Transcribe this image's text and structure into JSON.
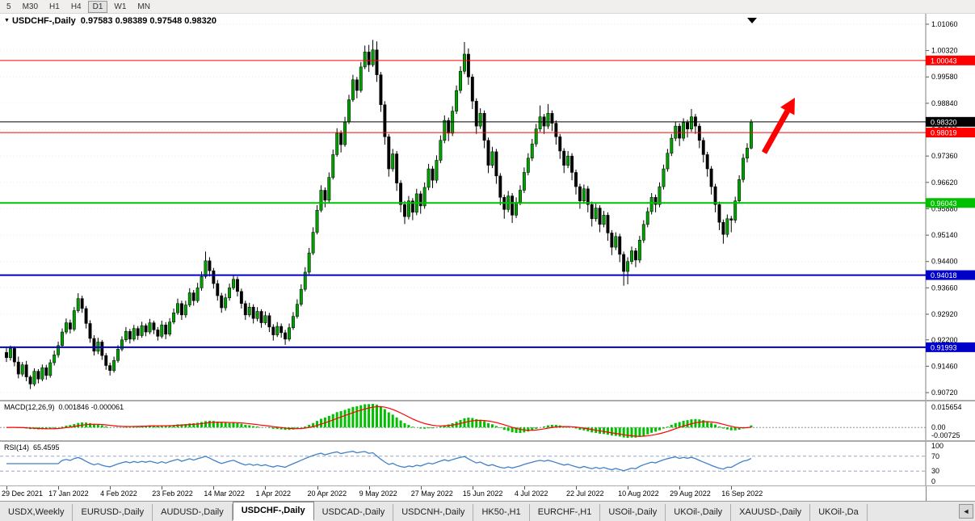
{
  "toolbar": {
    "timeframes": [
      "5",
      "M30",
      "H1",
      "H4",
      "D1",
      "W1",
      "MN"
    ],
    "active": "D1"
  },
  "chart_data": {
    "type": "candlestick",
    "symbol": "USDCHF-",
    "period": "Daily",
    "title": "USDCHF-,Daily",
    "ohlc_text": "0.97583 0.98389 0.97548 0.98320",
    "current": {
      "open": 0.97583,
      "high": 0.98389,
      "low": 0.97548,
      "close": 0.9832
    },
    "y_min": 0.9072,
    "y_max": 1.0106,
    "price_axis_labels": [
      "1.01060",
      "1.00320",
      "0.99580",
      "0.98840",
      "0.98100",
      "0.97360",
      "0.96620",
      "0.95880",
      "0.95140",
      "0.94400",
      "0.93660",
      "0.92920",
      "0.92200",
      "0.91460",
      "0.90720"
    ],
    "x_labels": [
      "29 Dec 2021",
      "17 Jan 2022",
      "4 Feb 2022",
      "23 Feb 2022",
      "14 Mar 2022",
      "1 Apr 2022",
      "20 Apr 2022",
      "9 May 2022",
      "27 May 2022",
      "15 Jun 2022",
      "4 Jul 2022",
      "22 Jul 2022",
      "10 Aug 2022",
      "29 Aug 2022",
      "16 Sep 2022"
    ],
    "bars_per_label": 13,
    "up_color": "#00A000",
    "down_color": "#000000",
    "hlines": [
      {
        "price": 1.00043,
        "label": "1.00043",
        "color": "#FF0000",
        "width": 1
      },
      {
        "price": 0.9832,
        "label": "0.98320",
        "color": "#000000",
        "width": 1
      },
      {
        "price": 0.98019,
        "label": "0.98019",
        "color": "#FF0000",
        "width": 1
      },
      {
        "price": 0.96043,
        "label": "0.96043",
        "color": "#00C000",
        "width": 2
      },
      {
        "price": 0.94018,
        "label": "0.94018",
        "color": "#0000C8",
        "width": 2
      },
      {
        "price": 0.91993,
        "label": "0.91993",
        "color": "#0000C8",
        "width": 2
      }
    ],
    "candles": [
      [
        0.9185,
        0.9197,
        0.9158,
        0.917
      ],
      [
        0.917,
        0.9204,
        0.9162,
        0.9196
      ],
      [
        0.9196,
        0.9202,
        0.9146,
        0.9158
      ],
      [
        0.9158,
        0.9173,
        0.9112,
        0.9124
      ],
      [
        0.9124,
        0.9158,
        0.9117,
        0.915
      ],
      [
        0.915,
        0.9161,
        0.9104,
        0.9116
      ],
      [
        0.9116,
        0.9121,
        0.9082,
        0.9096
      ],
      [
        0.9096,
        0.914,
        0.909,
        0.9132
      ],
      [
        0.9132,
        0.9138,
        0.9098,
        0.911
      ],
      [
        0.911,
        0.9151,
        0.9104,
        0.9142
      ],
      [
        0.9142,
        0.915,
        0.9108,
        0.912
      ],
      [
        0.912,
        0.9165,
        0.9114,
        0.9156
      ],
      [
        0.9156,
        0.919,
        0.9148,
        0.9178
      ],
      [
        0.9178,
        0.9215,
        0.917,
        0.9204
      ],
      [
        0.9204,
        0.9252,
        0.9198,
        0.9242
      ],
      [
        0.9242,
        0.928,
        0.9236,
        0.9268
      ],
      [
        0.9268,
        0.9277,
        0.9238,
        0.925
      ],
      [
        0.925,
        0.9312,
        0.9244,
        0.9302
      ],
      [
        0.9302,
        0.9351,
        0.9296,
        0.9336
      ],
      [
        0.9336,
        0.9344,
        0.9296,
        0.9308
      ],
      [
        0.9308,
        0.9315,
        0.9252,
        0.9266
      ],
      [
        0.9266,
        0.9275,
        0.9212,
        0.9224
      ],
      [
        0.9224,
        0.9233,
        0.9176,
        0.9188
      ],
      [
        0.9188,
        0.9226,
        0.918,
        0.9214
      ],
      [
        0.9214,
        0.922,
        0.9164,
        0.9176
      ],
      [
        0.9176,
        0.9183,
        0.9136,
        0.9148
      ],
      [
        0.9148,
        0.9156,
        0.912,
        0.9134
      ],
      [
        0.9134,
        0.9173,
        0.9128,
        0.9162
      ],
      [
        0.9162,
        0.9205,
        0.9156,
        0.9194
      ],
      [
        0.9194,
        0.923,
        0.9188,
        0.922
      ],
      [
        0.922,
        0.9256,
        0.9214,
        0.9244
      ],
      [
        0.9244,
        0.9251,
        0.921,
        0.9222
      ],
      [
        0.9222,
        0.9262,
        0.9216,
        0.9252
      ],
      [
        0.9252,
        0.9259,
        0.922,
        0.9232
      ],
      [
        0.9232,
        0.9271,
        0.9226,
        0.926
      ],
      [
        0.926,
        0.9266,
        0.923,
        0.9242
      ],
      [
        0.9242,
        0.9279,
        0.9236,
        0.9268
      ],
      [
        0.9268,
        0.9274,
        0.9236,
        0.9248
      ],
      [
        0.9248,
        0.9256,
        0.9218,
        0.923
      ],
      [
        0.923,
        0.9274,
        0.9224,
        0.9262
      ],
      [
        0.9262,
        0.927,
        0.9222,
        0.9236
      ],
      [
        0.9236,
        0.9281,
        0.923,
        0.927
      ],
      [
        0.927,
        0.9308,
        0.9264,
        0.9296
      ],
      [
        0.9296,
        0.9336,
        0.929,
        0.9322
      ],
      [
        0.9322,
        0.933,
        0.9276,
        0.929
      ],
      [
        0.929,
        0.933,
        0.9282,
        0.9318
      ],
      [
        0.9318,
        0.9365,
        0.9312,
        0.9352
      ],
      [
        0.9352,
        0.936,
        0.9316,
        0.933
      ],
      [
        0.933,
        0.938,
        0.9324,
        0.9366
      ],
      [
        0.9366,
        0.9412,
        0.9358,
        0.9398
      ],
      [
        0.9398,
        0.9468,
        0.9392,
        0.9442
      ],
      [
        0.9442,
        0.9452,
        0.9398,
        0.9414
      ],
      [
        0.9414,
        0.9422,
        0.9364,
        0.9378
      ],
      [
        0.9378,
        0.9388,
        0.933,
        0.9344
      ],
      [
        0.9344,
        0.9352,
        0.9296,
        0.931
      ],
      [
        0.931,
        0.935,
        0.9302,
        0.9338
      ],
      [
        0.9338,
        0.9378,
        0.933,
        0.9366
      ],
      [
        0.9366,
        0.9402,
        0.936,
        0.939
      ],
      [
        0.939,
        0.9398,
        0.9342,
        0.9356
      ],
      [
        0.9356,
        0.9364,
        0.9308,
        0.9322
      ],
      [
        0.9322,
        0.933,
        0.9276,
        0.929
      ],
      [
        0.929,
        0.9324,
        0.9284,
        0.9312
      ],
      [
        0.9312,
        0.932,
        0.9266,
        0.928
      ],
      [
        0.928,
        0.9312,
        0.9272,
        0.93
      ],
      [
        0.93,
        0.9306,
        0.9254,
        0.9268
      ],
      [
        0.9268,
        0.93,
        0.9262,
        0.9288
      ],
      [
        0.9288,
        0.9296,
        0.9242,
        0.9256
      ],
      [
        0.9256,
        0.9264,
        0.9218,
        0.9234
      ],
      [
        0.9234,
        0.927,
        0.9228,
        0.9258
      ],
      [
        0.9258,
        0.9266,
        0.9226,
        0.924
      ],
      [
        0.924,
        0.9248,
        0.9206,
        0.9222
      ],
      [
        0.9222,
        0.9266,
        0.9216,
        0.9254
      ],
      [
        0.9254,
        0.9298,
        0.9248,
        0.9286
      ],
      [
        0.9286,
        0.9334,
        0.928,
        0.932
      ],
      [
        0.932,
        0.9376,
        0.9314,
        0.9362
      ],
      [
        0.9362,
        0.9424,
        0.9356,
        0.941
      ],
      [
        0.941,
        0.9478,
        0.9404,
        0.9464
      ],
      [
        0.9464,
        0.9536,
        0.9458,
        0.9522
      ],
      [
        0.9522,
        0.9598,
        0.9516,
        0.9584
      ],
      [
        0.9584,
        0.9654,
        0.9578,
        0.964
      ],
      [
        0.964,
        0.9648,
        0.9592,
        0.9612
      ],
      [
        0.9612,
        0.969,
        0.9606,
        0.9676
      ],
      [
        0.9676,
        0.9754,
        0.967,
        0.974
      ],
      [
        0.974,
        0.9814,
        0.9734,
        0.98
      ],
      [
        0.98,
        0.9808,
        0.9746,
        0.9768
      ],
      [
        0.9768,
        0.9846,
        0.9762,
        0.9832
      ],
      [
        0.9832,
        0.9908,
        0.9826,
        0.9894
      ],
      [
        0.9894,
        0.9964,
        0.9888,
        0.995
      ],
      [
        0.995,
        0.9958,
        0.9898,
        0.992
      ],
      [
        0.992,
        1.0,
        0.9914,
        0.9986
      ],
      [
        0.9986,
        1.0046,
        0.998,
        1.0028
      ],
      [
        1.0028,
        1.0048,
        0.9972,
        0.9992
      ],
      [
        0.9992,
        1.0062,
        0.9986,
        1.0034
      ],
      [
        1.0034,
        1.0058,
        0.9944,
        0.9964
      ],
      [
        0.9964,
        0.9972,
        0.986,
        0.988
      ],
      [
        0.988,
        0.989,
        0.9768,
        0.979
      ],
      [
        0.979,
        0.9798,
        0.9678,
        0.97
      ],
      [
        0.97,
        0.9756,
        0.9692,
        0.9742
      ],
      [
        0.9742,
        0.975,
        0.9638,
        0.966
      ],
      [
        0.966,
        0.9668,
        0.9578,
        0.96
      ],
      [
        0.96,
        0.961,
        0.9545,
        0.9566
      ],
      [
        0.9566,
        0.9624,
        0.9558,
        0.961
      ],
      [
        0.961,
        0.9618,
        0.9556,
        0.9578
      ],
      [
        0.9578,
        0.9644,
        0.957,
        0.963
      ],
      [
        0.963,
        0.9638,
        0.9574,
        0.9596
      ],
      [
        0.9596,
        0.9662,
        0.9588,
        0.9648
      ],
      [
        0.9648,
        0.9714,
        0.964,
        0.97
      ],
      [
        0.97,
        0.9708,
        0.9646,
        0.9668
      ],
      [
        0.9668,
        0.9738,
        0.966,
        0.9724
      ],
      [
        0.9724,
        0.9794,
        0.9716,
        0.978
      ],
      [
        0.978,
        0.985,
        0.9772,
        0.9836
      ],
      [
        0.9836,
        0.9844,
        0.9778,
        0.98
      ],
      [
        0.98,
        0.9876,
        0.9792,
        0.9862
      ],
      [
        0.9862,
        0.9934,
        0.9854,
        0.992
      ],
      [
        0.992,
        0.9988,
        0.9912,
        0.9974
      ],
      [
        0.9974,
        1.0056,
        0.9966,
        1.0022
      ],
      [
        1.0022,
        1.0038,
        0.9936,
        0.9958
      ],
      [
        0.9958,
        0.9966,
        0.9868,
        0.989
      ],
      [
        0.989,
        0.9898,
        0.9798,
        0.982
      ],
      [
        0.982,
        0.987,
        0.9812,
        0.9856
      ],
      [
        0.9856,
        0.9864,
        0.9758,
        0.978
      ],
      [
        0.978,
        0.9788,
        0.9688,
        0.971
      ],
      [
        0.971,
        0.9762,
        0.9702,
        0.9748
      ],
      [
        0.9748,
        0.9756,
        0.9658,
        0.968
      ],
      [
        0.968,
        0.9688,
        0.9598,
        0.962
      ],
      [
        0.962,
        0.9628,
        0.956,
        0.9586
      ],
      [
        0.9586,
        0.9638,
        0.9578,
        0.9624
      ],
      [
        0.9624,
        0.9632,
        0.9548,
        0.957
      ],
      [
        0.957,
        0.962,
        0.9562,
        0.9606
      ],
      [
        0.9606,
        0.9654,
        0.9598,
        0.964
      ],
      [
        0.964,
        0.9704,
        0.9632,
        0.969
      ],
      [
        0.969,
        0.9744,
        0.9682,
        0.973
      ],
      [
        0.973,
        0.9784,
        0.9722,
        0.977
      ],
      [
        0.977,
        0.9826,
        0.9762,
        0.9812
      ],
      [
        0.9812,
        0.9878,
        0.9804,
        0.9846
      ],
      [
        0.9846,
        0.9854,
        0.9798,
        0.982
      ],
      [
        0.982,
        0.9882,
        0.9812,
        0.9856
      ],
      [
        0.9856,
        0.9864,
        0.9806,
        0.9828
      ],
      [
        0.9828,
        0.9836,
        0.9768,
        0.979
      ],
      [
        0.979,
        0.9798,
        0.9728,
        0.975
      ],
      [
        0.975,
        0.9758,
        0.9688,
        0.971
      ],
      [
        0.971,
        0.975,
        0.9702,
        0.9736
      ],
      [
        0.9736,
        0.9744,
        0.9668,
        0.969
      ],
      [
        0.969,
        0.9698,
        0.9628,
        0.965
      ],
      [
        0.965,
        0.9658,
        0.9588,
        0.961
      ],
      [
        0.961,
        0.9656,
        0.9602,
        0.9644
      ],
      [
        0.9644,
        0.9652,
        0.9578,
        0.96
      ],
      [
        0.96,
        0.9608,
        0.9538,
        0.956
      ],
      [
        0.956,
        0.9602,
        0.9552,
        0.959
      ],
      [
        0.959,
        0.9598,
        0.9522,
        0.9544
      ],
      [
        0.9544,
        0.9582,
        0.9536,
        0.957
      ],
      [
        0.957,
        0.9578,
        0.9498,
        0.952
      ],
      [
        0.952,
        0.9528,
        0.9458,
        0.948
      ],
      [
        0.948,
        0.9522,
        0.9472,
        0.951
      ],
      [
        0.951,
        0.9518,
        0.9438,
        0.946
      ],
      [
        0.946,
        0.9468,
        0.9372,
        0.9412
      ],
      [
        0.9412,
        0.9452,
        0.9376,
        0.944
      ],
      [
        0.944,
        0.9482,
        0.9432,
        0.947
      ],
      [
        0.947,
        0.9478,
        0.9424,
        0.9444
      ],
      [
        0.9444,
        0.9512,
        0.9436,
        0.95
      ],
      [
        0.95,
        0.9556,
        0.9492,
        0.9544
      ],
      [
        0.9544,
        0.9592,
        0.9536,
        0.958
      ],
      [
        0.958,
        0.9632,
        0.9572,
        0.962
      ],
      [
        0.962,
        0.9628,
        0.9578,
        0.96
      ],
      [
        0.96,
        0.9662,
        0.9592,
        0.965
      ],
      [
        0.965,
        0.9712,
        0.9642,
        0.97
      ],
      [
        0.97,
        0.9756,
        0.9692,
        0.9744
      ],
      [
        0.9744,
        0.9798,
        0.9736,
        0.9786
      ],
      [
        0.9786,
        0.9832,
        0.9778,
        0.982
      ],
      [
        0.982,
        0.9828,
        0.9764,
        0.9786
      ],
      [
        0.9786,
        0.9842,
        0.9778,
        0.983
      ],
      [
        0.983,
        0.9838,
        0.9788,
        0.9812
      ],
      [
        0.9812,
        0.9868,
        0.9804,
        0.9846
      ],
      [
        0.9846,
        0.9854,
        0.9798,
        0.982
      ],
      [
        0.982,
        0.9828,
        0.9758,
        0.978
      ],
      [
        0.978,
        0.9788,
        0.9718,
        0.974
      ],
      [
        0.974,
        0.9748,
        0.9678,
        0.97
      ],
      [
        0.97,
        0.9708,
        0.9628,
        0.965
      ],
      [
        0.965,
        0.9658,
        0.9578,
        0.96
      ],
      [
        0.96,
        0.9608,
        0.9528,
        0.955
      ],
      [
        0.955,
        0.9558,
        0.949,
        0.9516
      ],
      [
        0.9516,
        0.9572,
        0.9508,
        0.956
      ],
      [
        0.956,
        0.9568,
        0.9522,
        0.9556
      ],
      [
        0.9556,
        0.9622,
        0.9548,
        0.961
      ],
      [
        0.961,
        0.9682,
        0.9602,
        0.967
      ],
      [
        0.967,
        0.9742,
        0.9662,
        0.973
      ],
      [
        0.973,
        0.9772,
        0.9718,
        0.97583
      ],
      [
        0.97583,
        0.98389,
        0.97548,
        0.9832
      ]
    ]
  },
  "macd": {
    "label": "MACD(12,26,9)",
    "values": "0.001846 -0.000061",
    "axis": [
      "0.015654",
      "0.00",
      "-0.00725"
    ],
    "params": [
      12,
      26,
      9
    ],
    "histogram_color": "#00C000",
    "signal_color": "#FF0000"
  },
  "rsi": {
    "label": "RSI(14)",
    "value": "65.4595",
    "period": 14,
    "axis_labels": [
      "100",
      "70",
      "30",
      "0"
    ],
    "levels": [
      70,
      30
    ],
    "line_color": "#4080C8"
  },
  "annotations": {
    "trend_arrow_color": "#FF0000",
    "shift_marker_color": "#000000"
  },
  "tabs": {
    "items": [
      "USDX,Weekly",
      "EURUSD-,Daily",
      "AUDUSD-,Daily",
      "USDCHF-,Daily",
      "USDCAD-,Daily",
      "USDCNH-,Daily",
      "HK50-,H1",
      "EURCHF-,H1",
      "USOil-,Daily",
      "UKOil-,Daily",
      "XAUUSD-,Daily",
      "UKOil-,Da"
    ],
    "active_index": 3,
    "scroll_left_icon": "◄"
  }
}
